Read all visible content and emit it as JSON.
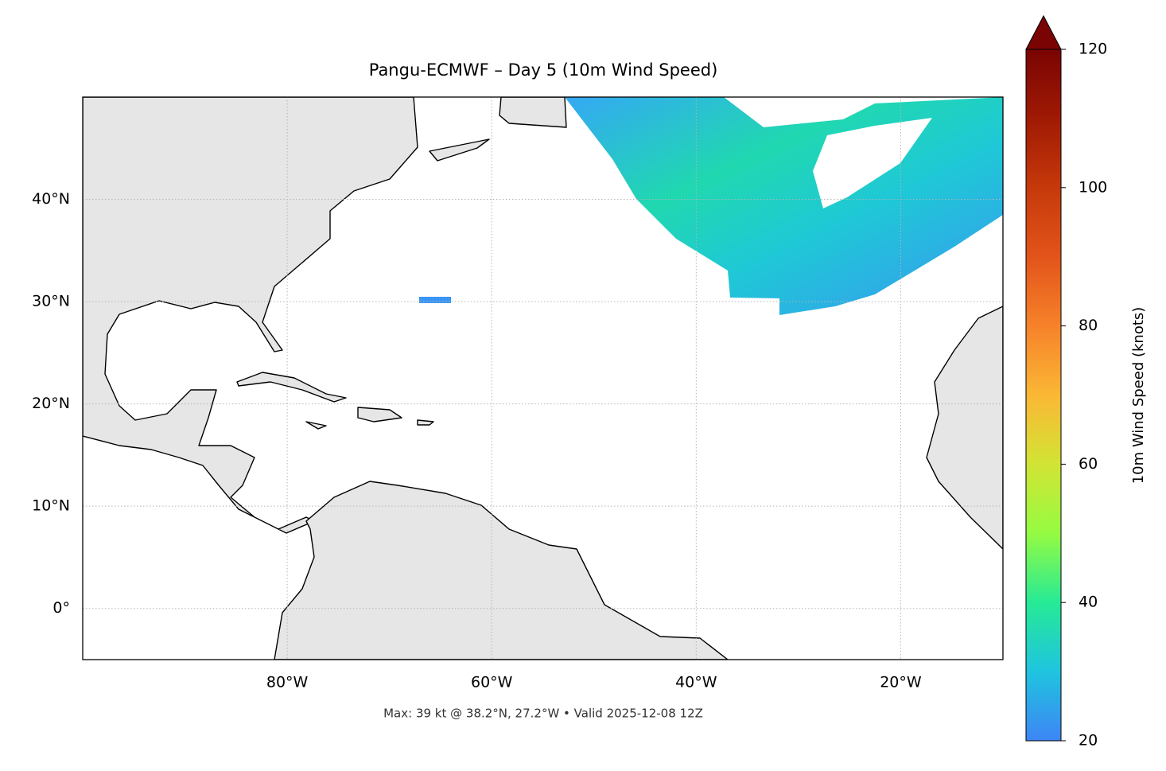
{
  "map": {
    "title": "Pangu-ECMWF – Day 5 (10m Wind Speed)",
    "xlim": [
      -100,
      -10
    ],
    "ylim": [
      -5,
      50
    ],
    "xticks": [
      {
        "value": -80,
        "label": "80°W"
      },
      {
        "value": -60,
        "label": "60°W"
      },
      {
        "value": -40,
        "label": "40°W"
      },
      {
        "value": -20,
        "label": "20°W"
      }
    ],
    "yticks": [
      {
        "value": 0,
        "label": "0°"
      },
      {
        "value": 10,
        "label": "10°N"
      },
      {
        "value": 20,
        "label": "20°N"
      },
      {
        "value": 30,
        "label": "30°N"
      },
      {
        "value": 40,
        "label": "40°N"
      }
    ],
    "footer": "Max: 39 kt @ 38.2°N, 27.2°W • Valid 2025-12-08 12Z",
    "colorbar": {
      "label": "10m Wind Speed (knots)",
      "lim": [
        20,
        120
      ],
      "ticks": [
        20,
        40,
        60,
        80,
        100,
        120
      ]
    }
  }
}
